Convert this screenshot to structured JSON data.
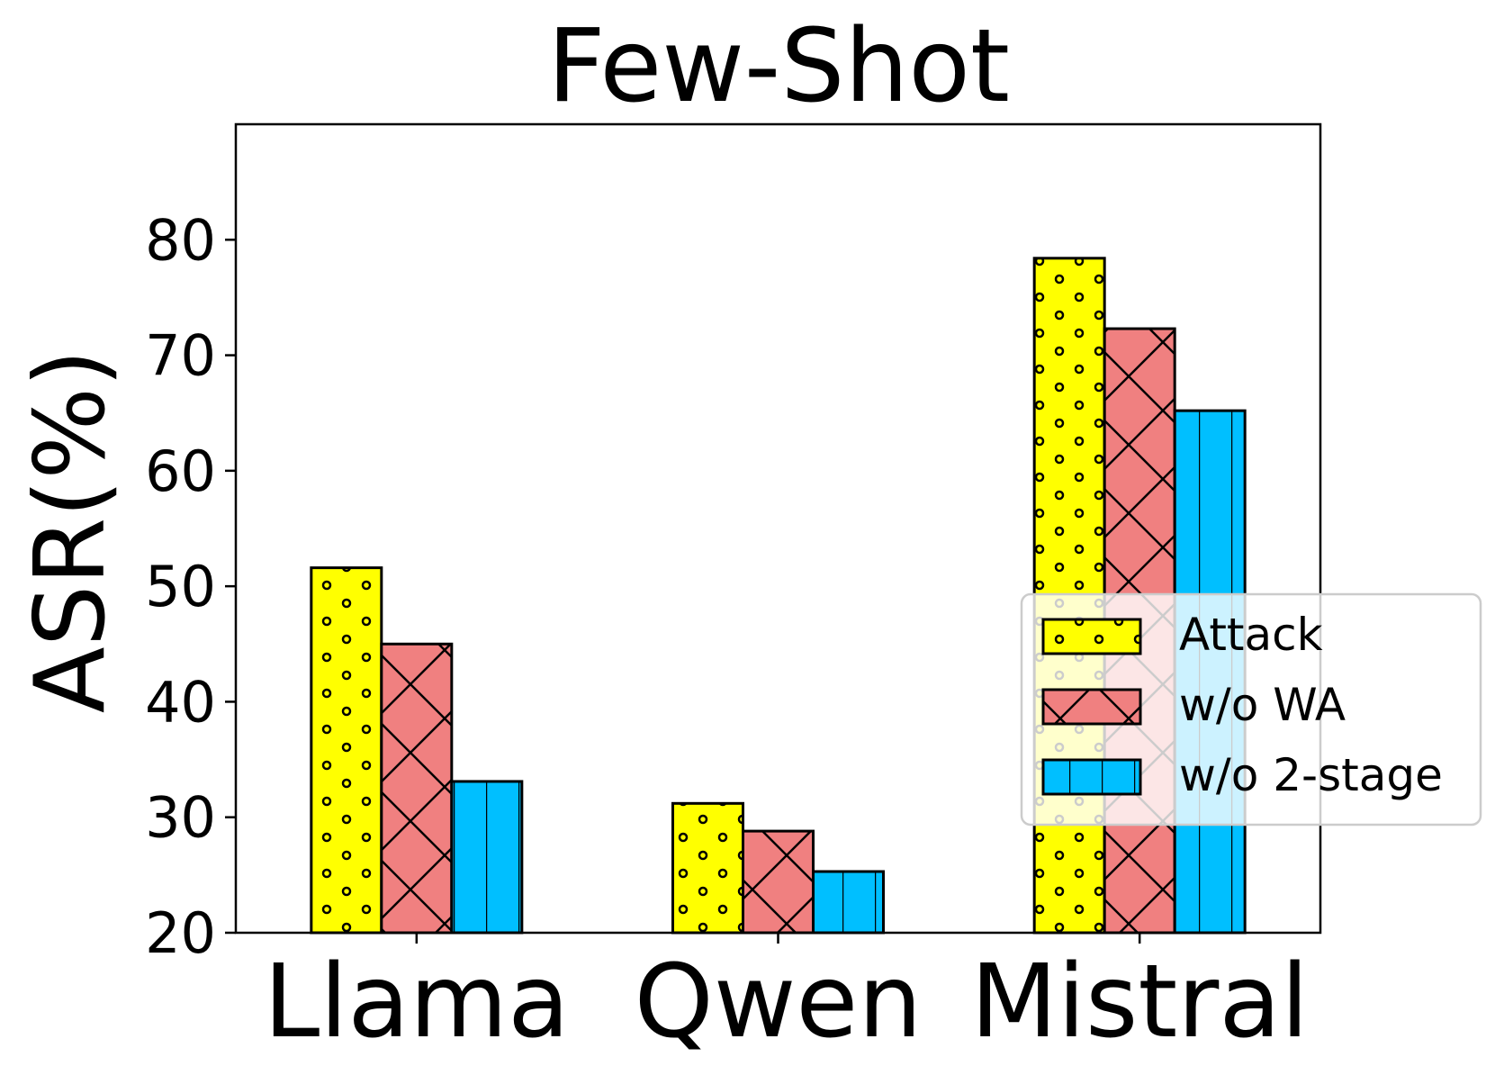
{
  "chart_data": {
    "type": "bar",
    "title": "Few-Shot",
    "xlabel": "",
    "ylabel": "ASR(%)",
    "categories": [
      "Llama",
      "Qwen",
      "Mistral"
    ],
    "ylim": [
      20,
      90
    ],
    "yticks": [
      20,
      30,
      40,
      50,
      60,
      70,
      80
    ],
    "grid": false,
    "legend_position": "center-right",
    "series": [
      {
        "name": "Attack",
        "values": [
          51.6,
          31.2,
          78.4
        ],
        "color": "#ffff00",
        "hatch": "dots"
      },
      {
        "name": "w/o WA",
        "values": [
          45.0,
          28.8,
          72.3
        ],
        "color": "#f08080",
        "hatch": "crosshatch"
      },
      {
        "name": "w/o 2-stage",
        "values": [
          33.1,
          25.3,
          65.2
        ],
        "color": "#00bfff",
        "hatch": "vertical"
      }
    ]
  }
}
